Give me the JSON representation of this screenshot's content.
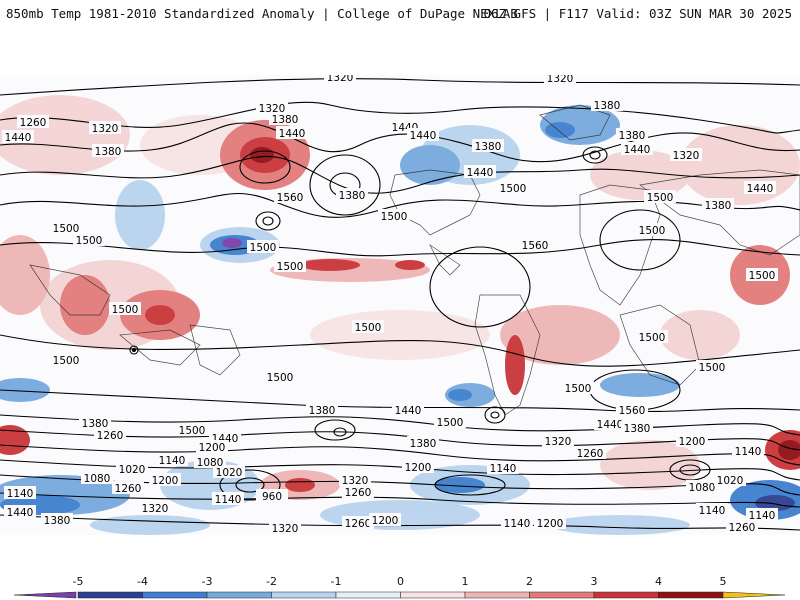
{
  "header": {
    "left_title": "850mb Temp 1981-2010 Standardized Anomaly | College of DuPage NEXLAB",
    "right_title": "06Z GFS | F117 Valid: 03Z SUN MAR 30 2025"
  },
  "colorbar": {
    "ticks": [
      "-5",
      "-4",
      "-3",
      "-2",
      "-1",
      "0",
      "1",
      "2",
      "3",
      "4",
      "5"
    ],
    "colors": [
      "#7b3fa8",
      "#2d3f8f",
      "#3f7fcf",
      "#76a9dd",
      "#b9d3ee",
      "#e6eff8",
      "#f7e3e3",
      "#efb5b5",
      "#e27a7a",
      "#c9353a",
      "#8f1115",
      "#f2c21b"
    ]
  },
  "map": {
    "contour_labels": [
      {
        "text": "1320"
      },
      {
        "text": "1320"
      },
      {
        "text": "1260"
      },
      {
        "text": "1320"
      },
      {
        "text": "1380"
      },
      {
        "text": "1440"
      },
      {
        "text": "1440"
      },
      {
        "text": "1380"
      },
      {
        "text": "1320"
      },
      {
        "text": "1380"
      },
      {
        "text": "1560"
      },
      {
        "text": "1380"
      },
      {
        "text": "1500"
      },
      {
        "text": "1440"
      },
      {
        "text": "1440"
      },
      {
        "text": "1380"
      },
      {
        "text": "1440"
      },
      {
        "text": "1500"
      },
      {
        "text": "1380"
      },
      {
        "text": "1440"
      },
      {
        "text": "1320"
      },
      {
        "text": "1380"
      },
      {
        "text": "1440"
      },
      {
        "text": "1500"
      },
      {
        "text": "1500"
      },
      {
        "text": "1500"
      },
      {
        "text": "1500"
      },
      {
        "text": "1500"
      },
      {
        "text": "1560"
      },
      {
        "text": "1500"
      },
      {
        "text": "1500"
      },
      {
        "text": "1500"
      },
      {
        "text": "1500"
      },
      {
        "text": "1500"
      },
      {
        "text": "1500"
      },
      {
        "text": "1500"
      },
      {
        "text": "1500"
      },
      {
        "text": "1380"
      },
      {
        "text": "1440"
      },
      {
        "text": "1500"
      },
      {
        "text": "1500"
      },
      {
        "text": "1560"
      },
      {
        "text": "1380"
      },
      {
        "text": "1440"
      },
      {
        "text": "1380"
      },
      {
        "text": "1260"
      },
      {
        "text": "1500"
      },
      {
        "text": "1440"
      },
      {
        "text": "1380"
      },
      {
        "text": "1320"
      },
      {
        "text": "1260"
      },
      {
        "text": "1200"
      },
      {
        "text": "1140"
      },
      {
        "text": "1200"
      },
      {
        "text": "1020"
      },
      {
        "text": "1140"
      },
      {
        "text": "1080"
      },
      {
        "text": "1200"
      },
      {
        "text": "1020"
      },
      {
        "text": "1080"
      },
      {
        "text": "1260"
      },
      {
        "text": "1140"
      },
      {
        "text": "960"
      },
      {
        "text": "1320"
      },
      {
        "text": "1260"
      },
      {
        "text": "1200"
      },
      {
        "text": "1140"
      },
      {
        "text": "1140"
      },
      {
        "text": "1080"
      },
      {
        "text": "1020"
      },
      {
        "text": "1140"
      },
      {
        "text": "1440"
      },
      {
        "text": "1380"
      },
      {
        "text": "1320"
      },
      {
        "text": "1320"
      },
      {
        "text": "1260"
      },
      {
        "text": "1200"
      },
      {
        "text": "1140"
      },
      {
        "text": "1260"
      },
      {
        "text": "1140"
      },
      {
        "text": "1200"
      }
    ]
  }
}
